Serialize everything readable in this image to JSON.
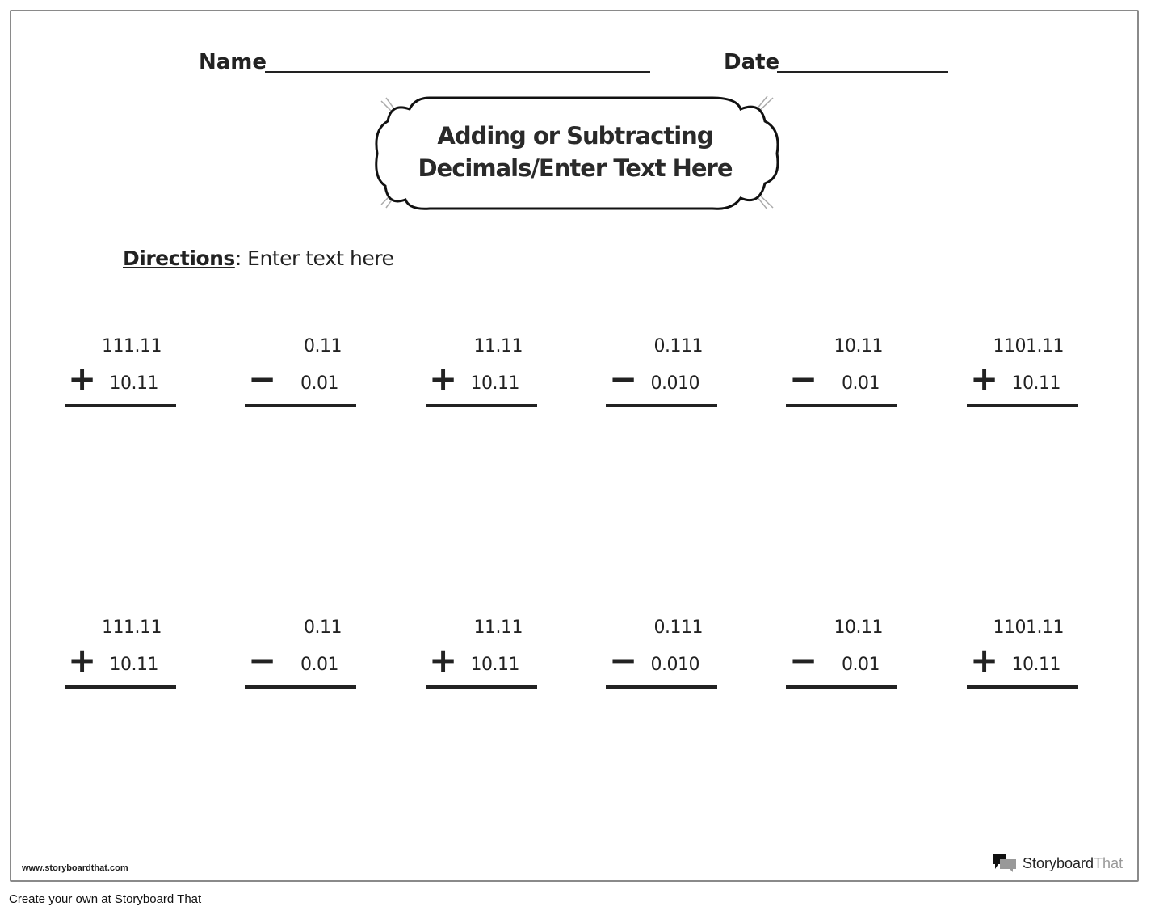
{
  "header": {
    "name_label": "Name",
    "date_label": "Date"
  },
  "title": {
    "line1": "Adding or Subtracting",
    "line2": "Decimals/Enter Text Here"
  },
  "directions": {
    "label": "Directions",
    "text": ": Enter text here"
  },
  "problems": [
    {
      "top": "111.11",
      "op": "+",
      "bottom": "10.11"
    },
    {
      "top": "0.11",
      "op": "−",
      "bottom": "0.01"
    },
    {
      "top": "11.11",
      "op": "+",
      "bottom": "10.11"
    },
    {
      "top": "0.111",
      "op": "−",
      "bottom": "0.010"
    },
    {
      "top": "10.11",
      "op": "−",
      "bottom": "0.01"
    },
    {
      "top": "1101.11",
      "op": "+",
      "bottom": "10.11"
    },
    {
      "top": "111.11",
      "op": "+",
      "bottom": "10.11"
    },
    {
      "top": "0.11",
      "op": "−",
      "bottom": "0.01"
    },
    {
      "top": "11.11",
      "op": "+",
      "bottom": "10.11"
    },
    {
      "top": "0.111",
      "op": "−",
      "bottom": "0.010"
    },
    {
      "top": "10.11",
      "op": "−",
      "bottom": "0.01"
    },
    {
      "top": "1101.11",
      "op": "+",
      "bottom": "10.11"
    }
  ],
  "footer": {
    "url": "www.storyboardthat.com",
    "brand_a": "Storyboard",
    "brand_b": "That",
    "create": "Create your own at Storyboard That"
  }
}
